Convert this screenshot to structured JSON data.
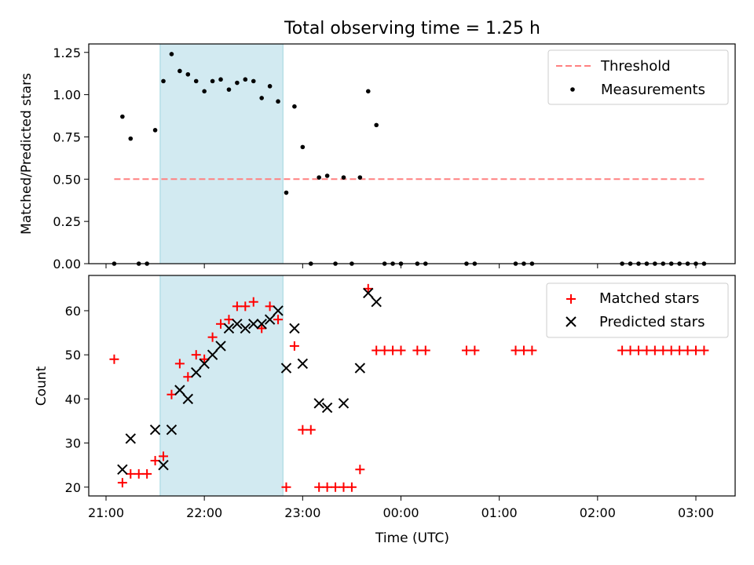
{
  "title": "Total observing time = 1.25 h",
  "chart_data": [
    {
      "type": "scatter",
      "ylabel": "Matched/Predicted stars",
      "xlabel": "",
      "ylim": [
        0,
        1.3
      ],
      "yticks": [
        "0.00",
        "0.25",
        "0.50",
        "0.75",
        "1.00",
        "1.25"
      ],
      "yticks_values": [
        0,
        0.25,
        0.5,
        0.75,
        1.0,
        1.25
      ],
      "shaded_interval": [
        "21:33",
        "22:48"
      ],
      "legend_position": "top-right",
      "legend": [
        "Threshold",
        "Measurements"
      ],
      "threshold": {
        "name": "Threshold",
        "value": 0.5,
        "x_range": [
          "21:05",
          "03:05"
        ],
        "color": "#ff8080"
      },
      "measurements": {
        "name": "Measurements",
        "color": "#000000",
        "x": [
          "21:05",
          "21:10",
          "21:15",
          "21:20",
          "21:25",
          "21:30",
          "21:35",
          "21:40",
          "21:45",
          "21:50",
          "21:55",
          "22:00",
          "22:05",
          "22:10",
          "22:15",
          "22:20",
          "22:25",
          "22:30",
          "22:35",
          "22:40",
          "22:45",
          "22:50",
          "22:55",
          "23:00",
          "23:05",
          "23:10",
          "23:15",
          "23:20",
          "23:25",
          "23:30",
          "23:35",
          "23:40",
          "23:45",
          "23:50",
          "23:55",
          "00:00",
          "00:10",
          "00:15",
          "00:40",
          "00:45",
          "01:10",
          "01:15",
          "01:20",
          "02:15",
          "02:20",
          "02:25",
          "02:30",
          "02:35",
          "02:40",
          "02:45",
          "02:50",
          "02:55",
          "03:00",
          "03:05"
        ],
        "y": [
          0.0,
          0.87,
          0.74,
          0.0,
          0.0,
          0.79,
          1.08,
          1.24,
          1.14,
          1.12,
          1.08,
          1.02,
          1.08,
          1.09,
          1.03,
          1.07,
          1.09,
          1.08,
          0.98,
          1.05,
          0.96,
          0.42,
          0.93,
          0.69,
          0.0,
          0.51,
          0.52,
          0.0,
          0.51,
          0.0,
          0.51,
          1.02,
          0.82,
          0.0,
          0.0,
          0.0,
          0.0,
          0.0,
          0.0,
          0.0,
          0.0,
          0.0,
          0.0,
          0.0,
          0.0,
          0.0,
          0.0,
          0.0,
          0.0,
          0.0,
          0.0,
          0.0,
          0.0,
          0.0
        ]
      }
    },
    {
      "type": "scatter",
      "ylabel": "Count",
      "xlabel": "Time (UTC)",
      "ylim": [
        18,
        68
      ],
      "yticks": [
        "20",
        "30",
        "40",
        "50",
        "60"
      ],
      "yticks_values": [
        20,
        30,
        40,
        50,
        60
      ],
      "xticks": [
        "21:00",
        "22:00",
        "23:00",
        "00:00",
        "01:00",
        "02:00",
        "03:00"
      ],
      "shaded_interval": [
        "21:33",
        "22:48"
      ],
      "legend_position": "top-right",
      "legend": [
        "Matched stars",
        "Predicted stars"
      ],
      "series": [
        {
          "name": "Matched stars",
          "marker": "+",
          "color": "#ff0000",
          "x": [
            "21:05",
            "21:10",
            "21:15",
            "21:20",
            "21:25",
            "21:30",
            "21:35",
            "21:40",
            "21:45",
            "21:50",
            "21:55",
            "22:00",
            "22:05",
            "22:10",
            "22:15",
            "22:20",
            "22:25",
            "22:30",
            "22:35",
            "22:40",
            "22:45",
            "22:50",
            "22:55",
            "23:00",
            "23:05",
            "23:10",
            "23:15",
            "23:20",
            "23:25",
            "23:30",
            "23:35",
            "23:40",
            "23:45",
            "23:50",
            "23:55",
            "00:00",
            "00:10",
            "00:15",
            "00:40",
            "00:45",
            "01:10",
            "01:15",
            "01:20",
            "02:15",
            "02:20",
            "02:25",
            "02:30",
            "02:35",
            "02:40",
            "02:45",
            "02:50",
            "02:55",
            "03:00",
            "03:05"
          ],
          "y": [
            49,
            21,
            23,
            23,
            23,
            26,
            27,
            41,
            48,
            45,
            50,
            49,
            54,
            57,
            58,
            61,
            61,
            62,
            56,
            61,
            58,
            20,
            52,
            33,
            33,
            20,
            20,
            20,
            20,
            20,
            24,
            65,
            51,
            51,
            51,
            51,
            51,
            51,
            51,
            51,
            51,
            51,
            51,
            51,
            51,
            51,
            51,
            51,
            51,
            51,
            51,
            51,
            51,
            51
          ]
        },
        {
          "name": "Predicted stars",
          "marker": "x",
          "color": "#000000",
          "x": [
            "21:10",
            "21:15",
            "21:30",
            "21:35",
            "21:40",
            "21:45",
            "21:50",
            "21:55",
            "22:00",
            "22:05",
            "22:10",
            "22:15",
            "22:20",
            "22:25",
            "22:30",
            "22:35",
            "22:40",
            "22:45",
            "22:50",
            "22:55",
            "23:00",
            "23:10",
            "23:15",
            "23:25",
            "23:35",
            "23:40",
            "23:45"
          ],
          "y": [
            24,
            31,
            33,
            25,
            33,
            42,
            40,
            46,
            48,
            50,
            52,
            56,
            57,
            56,
            57,
            57,
            58,
            60,
            47,
            56,
            48,
            39,
            38,
            39,
            47,
            64,
            62
          ]
        }
      ]
    }
  ]
}
